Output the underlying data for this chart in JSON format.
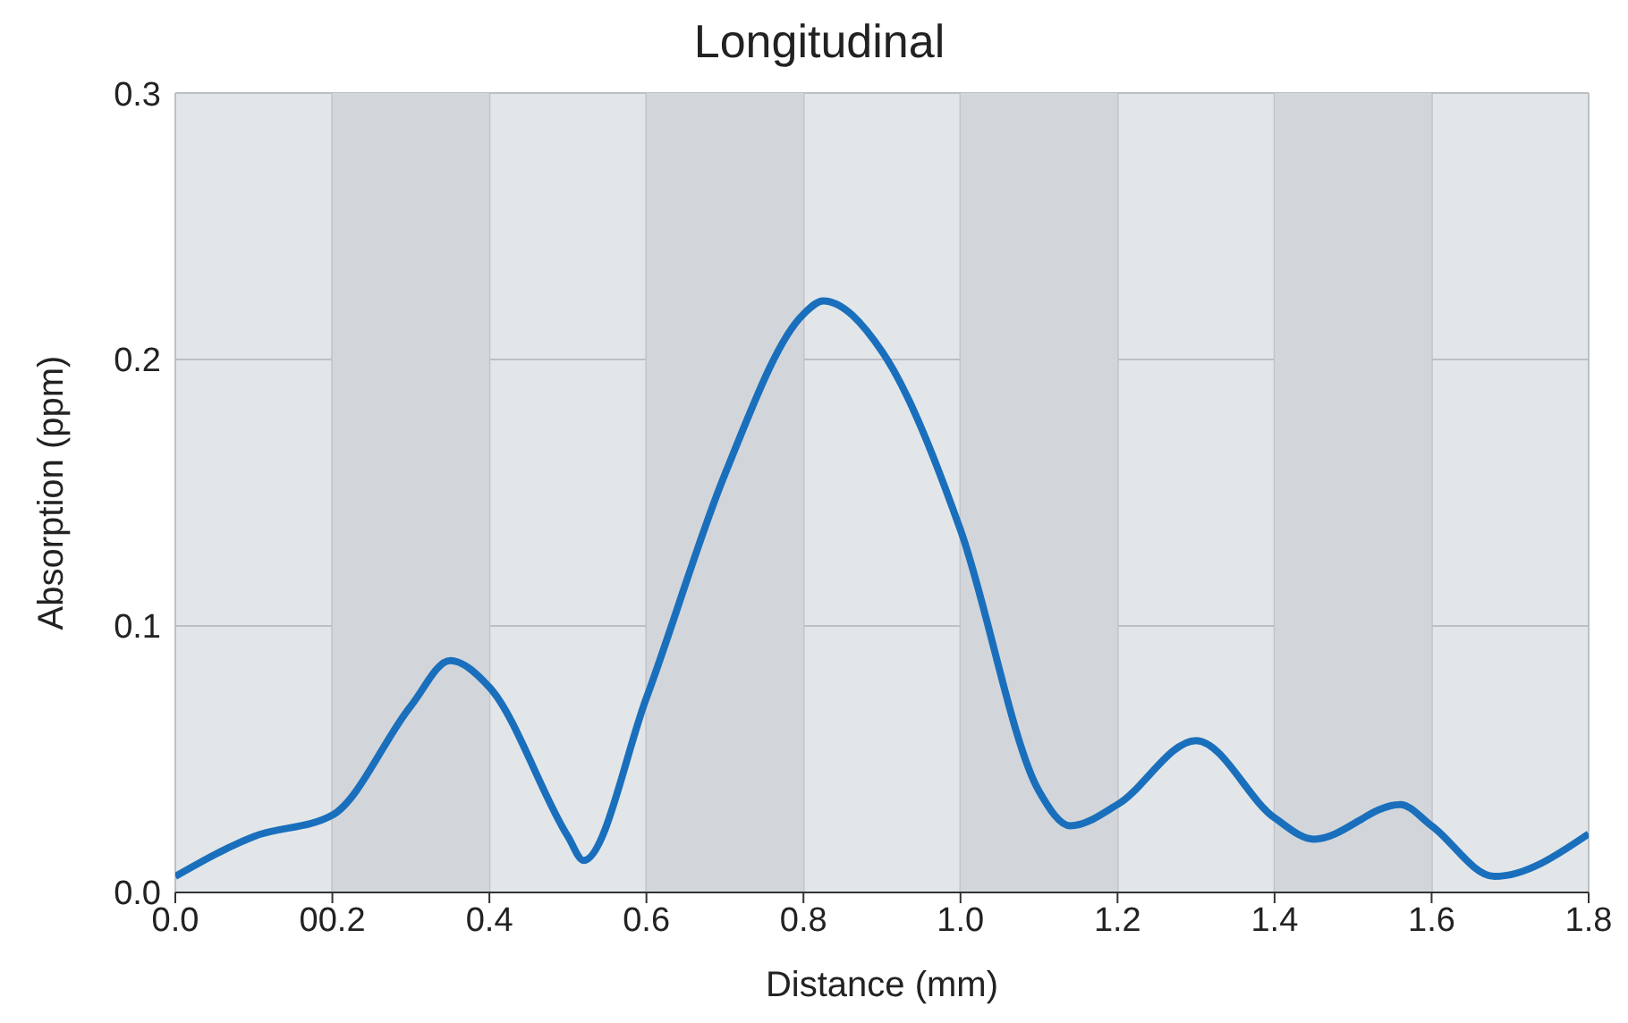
{
  "chart_data": {
    "type": "line",
    "title": "Longitudinal",
    "xlabel": "Distance (mm)",
    "ylabel": "Absorption (ppm)",
    "x": [
      0,
      0.1,
      0.2,
      0.3,
      0.35,
      0.4,
      0.5,
      0.52,
      0.6,
      0.7,
      0.8,
      0.825,
      0.9,
      1.0,
      1.1,
      1.14,
      1.2,
      1.3,
      1.4,
      1.45,
      1.56,
      1.6,
      1.68,
      1.8
    ],
    "series": [
      {
        "color": "#1a6fbd",
        "values": [
          0.006,
          0.021,
          0.029,
          0.07,
          0.087,
          0.077,
          0.021,
          0.012,
          0.073,
          0.157,
          0.217,
          0.222,
          0.203,
          0.136,
          0.038,
          0.025,
          0.033,
          0.057,
          0.028,
          0.02,
          0.033,
          0.025,
          0.006,
          0.022
        ]
      }
    ],
    "xlim": [
      0,
      1.8
    ],
    "xticks": [
      {
        "value": 0,
        "label": "0.0"
      },
      {
        "value": 0.2,
        "label": "00.2"
      },
      0.4,
      0.6,
      0.8,
      {
        "value": 1,
        "label": "1.0"
      },
      1.2,
      1.4,
      1.6,
      1.8
    ],
    "ylim": [
      0,
      0.3
    ],
    "yticks": [
      {
        "value": 0,
        "label": "0.0"
      },
      0.1,
      0.2,
      0.3
    ],
    "bands": [
      {
        "axis": "x",
        "from": 0.2,
        "to": 0.4,
        "color": "#d2d6da"
      },
      {
        "axis": "x",
        "from": 0.6,
        "to": 0.8,
        "color": "#d2d6da"
      },
      {
        "axis": "x",
        "from": 1.0,
        "to": 1.2,
        "color": "#d2d6da"
      },
      {
        "axis": "x",
        "from": 1.4,
        "to": 1.6,
        "color": "#d2d6da"
      }
    ],
    "grid": true,
    "marker": "none",
    "line_style": "solid"
  }
}
